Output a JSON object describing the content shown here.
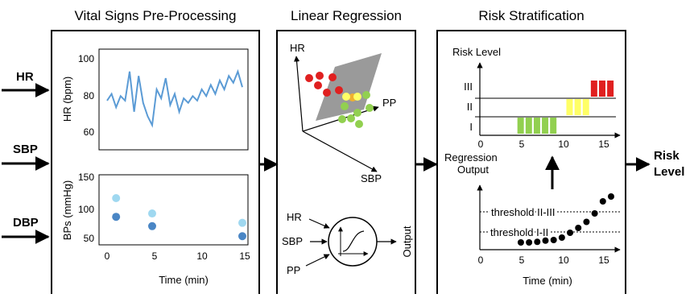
{
  "inputs": [
    "HR",
    "SBP",
    "DBP"
  ],
  "output": {
    "line1": "Risk",
    "line2": "Level"
  },
  "panel1": {
    "title": "Vital Signs Pre-Processing",
    "hr_ylabel": "HR (bpm)",
    "hr_yticks": [
      "100",
      "80",
      "60"
    ],
    "bp_ylabel": "BPs (mmHg)",
    "bp_yticks": [
      "150",
      "100",
      "50"
    ],
    "xticks": [
      "0",
      "5",
      "10",
      "15"
    ],
    "xlabel": "Time (min)"
  },
  "panel2": {
    "title": "Linear Regression",
    "axes": [
      "HR",
      "PP",
      "SBP"
    ],
    "nn_inputs": [
      "HR",
      "SBP",
      "PP"
    ],
    "nn_output": "Output"
  },
  "panel3": {
    "title": "Risk Stratification",
    "risk_ylabel": "Risk Level",
    "levels": [
      "III",
      "II",
      "I"
    ],
    "xticks": [
      "0",
      "5",
      "10",
      "15"
    ],
    "reg_ylabel_line1": "Regression",
    "reg_ylabel_line2": "Output",
    "threshold_high": "threshold II-III",
    "threshold_low": "threshold I-II",
    "xlabel": "Time (min)"
  },
  "colors": {
    "hr_line": "#5b9bd5",
    "sbp_dots": "#9fd8f0",
    "dbp_dots": "#4a86c5",
    "level_I": "#92d050",
    "level_II": "#ffff66",
    "level_III": "#e02020",
    "plane": "#9a9a9a"
  },
  "chart_data": [
    {
      "type": "line",
      "ylabel": "HR (bpm)",
      "xlabel": "Time (min)",
      "xlim": [
        0,
        15
      ],
      "ylim": [
        55,
        100
      ],
      "x": [
        0,
        0.5,
        1,
        1.5,
        2,
        2.5,
        3,
        3.5,
        4,
        4.5,
        5,
        5.5,
        6,
        6.5,
        7,
        7.5,
        8,
        8.5,
        9,
        9.5,
        10,
        10.5,
        11,
        11.5,
        12,
        12.5,
        13,
        13.5,
        14,
        14.5,
        15
      ],
      "series": [
        {
          "values": [
            77,
            80,
            74,
            79,
            77,
            90,
            72,
            88,
            76,
            70,
            66,
            82,
            78,
            87,
            75,
            80,
            72,
            78,
            76,
            79,
            77,
            82,
            79,
            84,
            80,
            86,
            82,
            88,
            85,
            90,
            83
          ]
        }
      ]
    },
    {
      "type": "scatter",
      "ylabel": "BPs (mmHg)",
      "xlabel": "Time (min)",
      "xlim": [
        0,
        15
      ],
      "ylim": [
        45,
        150
      ],
      "series": [
        {
          "x": [
            1,
            5,
            15
          ],
          "values": [
            115,
            92,
            78
          ]
        },
        {
          "x": [
            1,
            5,
            15
          ],
          "values": [
            87,
            73,
            58
          ]
        }
      ]
    },
    {
      "type": "bar",
      "ylabel": "Risk Level",
      "xlim": [
        0,
        15
      ],
      "categories": [
        5,
        6,
        7,
        8,
        9,
        11,
        12,
        13,
        14,
        15,
        16
      ],
      "values": [
        1,
        1,
        1,
        1,
        1,
        2,
        2,
        2,
        3,
        3,
        3
      ]
    },
    {
      "type": "scatter",
      "ylabel": "Regression Output",
      "xlabel": "Time (min)",
      "xlim": [
        0,
        16
      ],
      "x": [
        5,
        6,
        7,
        8,
        9,
        10,
        11,
        12,
        13,
        14,
        15,
        16
      ],
      "values": [
        0.12,
        0.12,
        0.13,
        0.15,
        0.16,
        0.2,
        0.28,
        0.36,
        0.46,
        0.6,
        0.8,
        0.88
      ],
      "thresholds": [
        0.25,
        0.65
      ]
    }
  ]
}
